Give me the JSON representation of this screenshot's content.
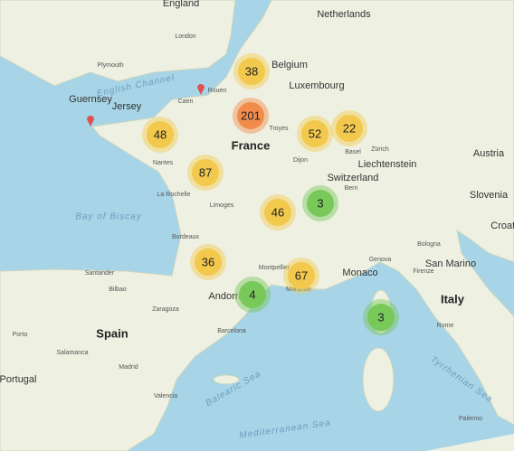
{
  "map": {
    "countries": [
      "England",
      "Netherlands",
      "Belgium",
      "Luxembourg",
      "France",
      "Switzerland",
      "Liechtenstein",
      "Austria",
      "Slovenia",
      "Croatia",
      "Italy",
      "Spain",
      "Portugal",
      "Jersey",
      "Guernsey",
      "Andorra",
      "Monaco",
      "San Marino"
    ],
    "seas": [
      "English Channel",
      "Bay of Biscay",
      "Balearic Sea",
      "Mediterranean Sea",
      "Tyrrhenian Sea"
    ],
    "cities": [
      "London",
      "Plymouth",
      "Rouen",
      "Caen",
      "Nantes",
      "La Rochelle",
      "Limoges",
      "Bordeaux",
      "Montpellier",
      "Marseille",
      "Dijon",
      "Troyes",
      "Basel",
      "Zürich",
      "Bern",
      "Genova",
      "Bologna",
      "Firenze",
      "Rome",
      "Madrid",
      "Zaragoza",
      "Barcelona",
      "Valencia",
      "Bilbao",
      "Santander",
      "Salamanca",
      "Porto",
      "Palermo"
    ],
    "clusters": [
      {
        "count": 38,
        "color": "#f2c94c"
      },
      {
        "count": 201,
        "color": "#f28c4b"
      },
      {
        "count": 48,
        "color": "#f2c94c"
      },
      {
        "count": 52,
        "color": "#f2c94c"
      },
      {
        "count": 22,
        "color": "#f2c94c"
      },
      {
        "count": 87,
        "color": "#f2c94c"
      },
      {
        "count": 3,
        "color": "#78c85a"
      },
      {
        "count": 46,
        "color": "#f2c94c"
      },
      {
        "count": 36,
        "color": "#f2c94c"
      },
      {
        "count": 67,
        "color": "#f2c94c"
      },
      {
        "count": 4,
        "color": "#78c85a"
      },
      {
        "count": 3,
        "color": "#78c85a"
      }
    ]
  }
}
